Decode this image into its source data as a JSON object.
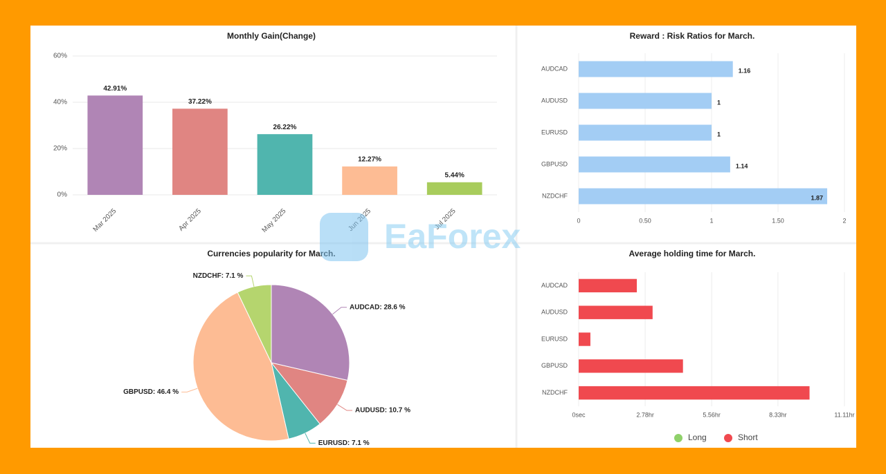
{
  "chart_data": [
    {
      "type": "bar",
      "title": "Monthly Gain(Change)",
      "categories": [
        "Mar 2025",
        "Apr 2025",
        "May 2025",
        "Jun 2025",
        "Jul 2025"
      ],
      "values": [
        42.91,
        37.22,
        26.22,
        12.27,
        5.44
      ],
      "value_labels": [
        "42.91%",
        "37.22%",
        "26.22%",
        "12.27%",
        "5.44%"
      ],
      "colors": [
        "#b085b5",
        "#e08582",
        "#50b5ae",
        "#fdbc94",
        "#a8cc5c"
      ],
      "ylim": [
        0,
        60
      ],
      "yticks": [
        {
          "value": 0,
          "label": "0%"
        },
        {
          "value": 20,
          "label": "20%"
        },
        {
          "value": 40,
          "label": "40%"
        },
        {
          "value": 60,
          "label": "60%"
        }
      ],
      "grid": true
    },
    {
      "type": "bar",
      "orientation": "horizontal",
      "title": "Reward : Risk Ratios for March.",
      "categories": [
        "AUDCAD",
        "AUDUSD",
        "EURUSD",
        "GBPUSD",
        "NZDCHF"
      ],
      "values": [
        1.16,
        1,
        1,
        1.14,
        1.87
      ],
      "color": "#a3cdf4",
      "xlim": [
        0,
        2
      ],
      "xticks": [
        0,
        {
          "value": 0.5,
          "label": "0.50"
        },
        1,
        {
          "value": 1.5,
          "label": "1.50"
        },
        2
      ],
      "grid": true
    },
    {
      "type": "pie",
      "title": "Currencies popularity for March.",
      "categories": [
        "AUDCAD",
        "AUDUSD",
        "EURUSD",
        "GBPUSD",
        "NZDCHF"
      ],
      "values": [
        28.6,
        10.7,
        7.1,
        46.4,
        7.1
      ],
      "value_labels": [
        "AUDCAD: 28.6 %",
        "AUDUSD: 10.7 %",
        "EURUSD: 7.1 %",
        "GBPUSD: 46.4 %",
        "NZDCHF: 7.1 %"
      ],
      "colors": [
        "#b085b5",
        "#e08582",
        "#50b5ae",
        "#fdbc94",
        "#b5d56e"
      ]
    },
    {
      "type": "bar",
      "orientation": "horizontal",
      "stacked": true,
      "title": "Average holding time for March.",
      "categories": [
        "AUDCAD",
        "AUDUSD",
        "EURUSD",
        "GBPUSD",
        "NZDCHF"
      ],
      "series": [
        {
          "name": "Long",
          "color": "#8fd16a",
          "values": [
            0,
            0,
            0,
            0,
            0
          ]
        },
        {
          "name": "Short",
          "color": "#f0494f",
          "values": [
            2.43,
            3.09,
            0.49,
            4.36,
            9.65
          ]
        }
      ],
      "xlim": [
        0,
        11.11
      ],
      "xticks": [
        {
          "value": 0,
          "label": "0sec"
        },
        {
          "value": 2.78,
          "label": "2.78hr"
        },
        {
          "value": 5.56,
          "label": "5.56hr"
        },
        {
          "value": 8.33,
          "label": "8.33hr"
        },
        {
          "value": 11.11,
          "label": "11.11hr"
        }
      ],
      "grid": true,
      "legend": "bottom"
    }
  ],
  "watermark": "EaForex"
}
